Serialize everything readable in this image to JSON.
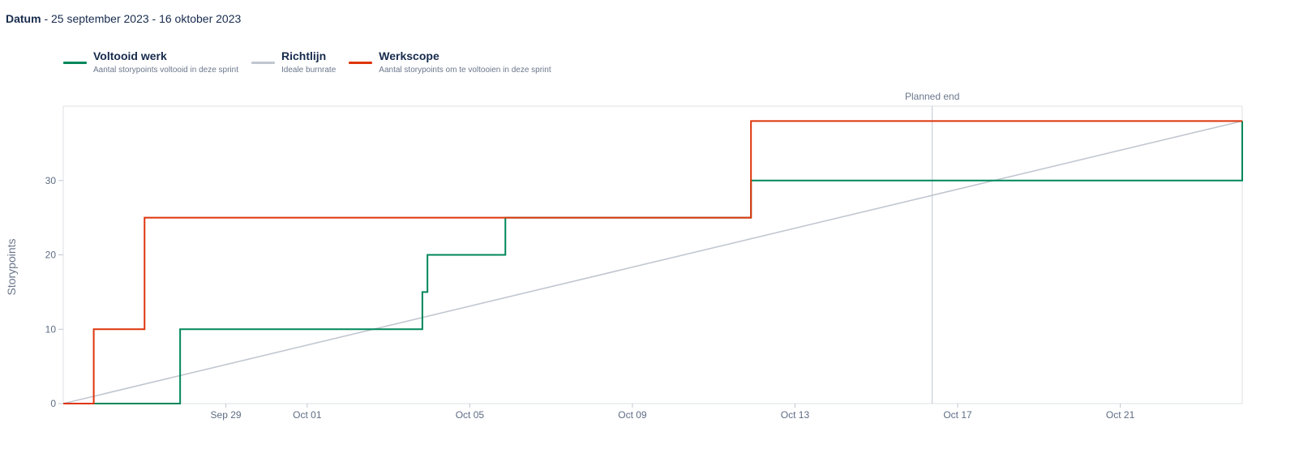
{
  "header": {
    "date_label": "Datum",
    "date_range": " - 25 september 2023 - 16 oktober 2023"
  },
  "legend": [
    {
      "name": "Voltooid werk",
      "description": "Aantal storypoints voltooid in deze sprint",
      "color": "#00875a"
    },
    {
      "name": "Richtlijn",
      "description": "Ideale burnrate",
      "color": "#c1c7d0"
    },
    {
      "name": "Werkscope",
      "description": "Aantal storypoints om te voltooien in deze sprint",
      "color": "#de350b"
    }
  ],
  "chart_data": {
    "type": "line",
    "ylabel": "Storypoints",
    "xlabel": "",
    "xlim": [
      "2023-09-25T00:00",
      "2023-10-24T00:00"
    ],
    "ylim": [
      0,
      40
    ],
    "yticks": [
      0,
      10,
      20,
      30
    ],
    "xticks": [
      {
        "date": "2023-09-29",
        "label": "Sep 29"
      },
      {
        "date": "2023-10-01",
        "label": "Oct 01"
      },
      {
        "date": "2023-10-05",
        "label": "Oct 05"
      },
      {
        "date": "2023-10-09",
        "label": "Oct 09"
      },
      {
        "date": "2023-10-13",
        "label": "Oct 13"
      },
      {
        "date": "2023-10-17",
        "label": "Oct 17"
      },
      {
        "date": "2023-10-21",
        "label": "Oct 21"
      }
    ],
    "planned_end": {
      "date": "2023-10-16T09:00",
      "label": "Planned end"
    },
    "grid": false,
    "legend_position": "top-left",
    "series": [
      {
        "name": "Voltooid werk",
        "color": "#00875a",
        "step": true,
        "points": [
          [
            "2023-09-25T00:00",
            0
          ],
          [
            "2023-09-27T21:00",
            10
          ],
          [
            "2023-10-03T20:00",
            15
          ],
          [
            "2023-10-03T23:00",
            20
          ],
          [
            "2023-10-05T21:00",
            25
          ],
          [
            "2023-10-11T22:00",
            30
          ],
          [
            "2023-10-24T00:00",
            38
          ]
        ]
      },
      {
        "name": "Richtlijn",
        "color": "#c1c7d0",
        "step": false,
        "points": [
          [
            "2023-09-25T00:00",
            0
          ],
          [
            "2023-10-24T00:00",
            38
          ]
        ]
      },
      {
        "name": "Werkscope",
        "color": "#de350b",
        "step": true,
        "points": [
          [
            "2023-09-25T00:00",
            0
          ],
          [
            "2023-09-25T18:00",
            10
          ],
          [
            "2023-09-27T00:00",
            25
          ],
          [
            "2023-10-11T22:00",
            38
          ],
          [
            "2023-10-24T00:00",
            38
          ]
        ]
      }
    ]
  }
}
